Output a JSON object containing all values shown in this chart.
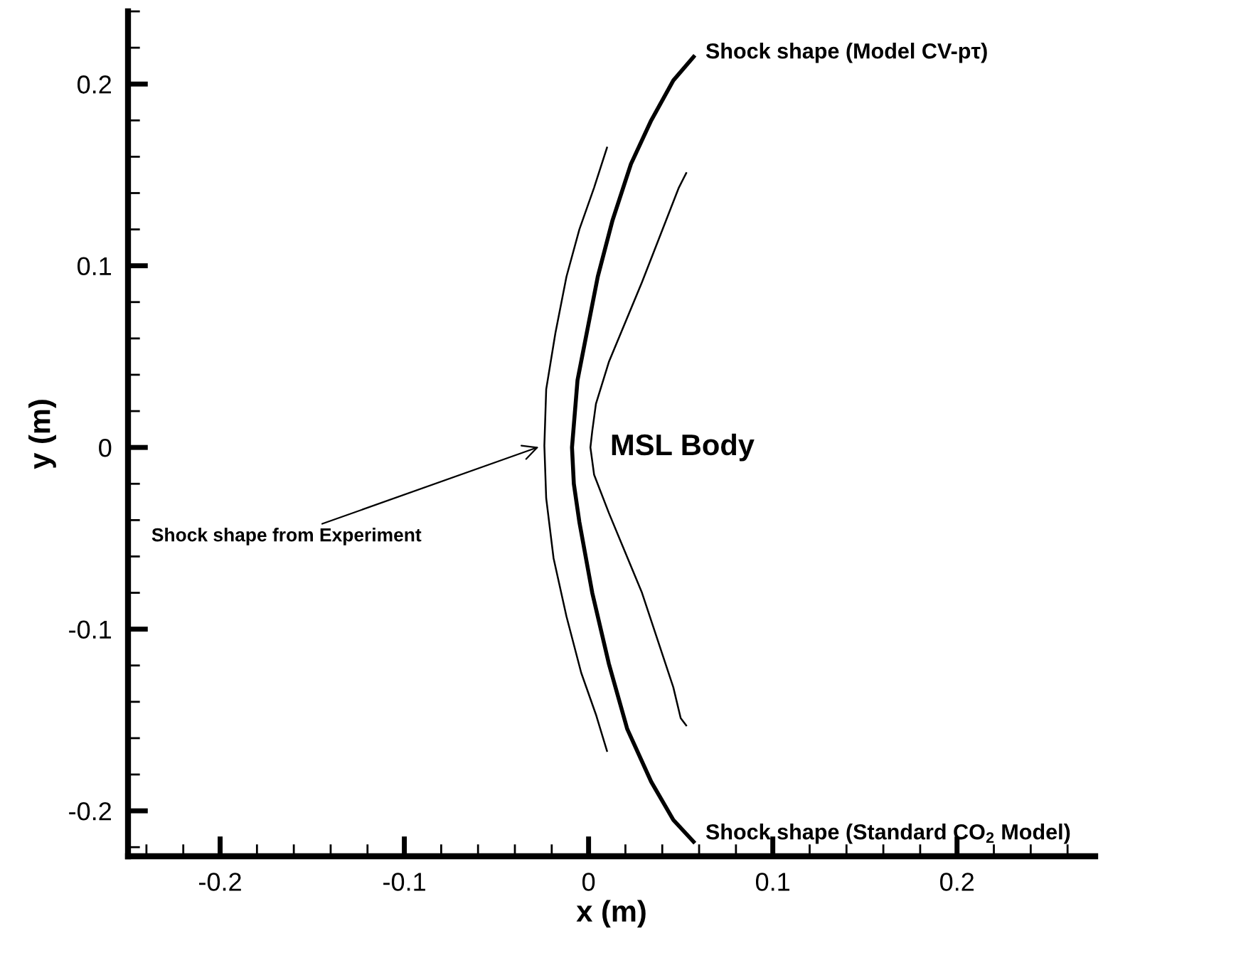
{
  "chart_data": {
    "type": "line",
    "xlabel": "x (m)",
    "ylabel": "y (m)",
    "xlim": [
      -0.25,
      0.275
    ],
    "ylim": [
      -0.225,
      0.24
    ],
    "xticks": [
      -0.2,
      -0.1,
      0,
      0.1,
      0.2
    ],
    "yticks": [
      -0.2,
      -0.1,
      0,
      0.1,
      0.2
    ],
    "grid": false,
    "legend": false,
    "marker": "none",
    "line_style": "solid",
    "series": [
      {
        "color": "#000000",
        "x": [
          0.01,
          0.003,
          -0.005,
          -0.012,
          -0.018,
          -0.023,
          -0.024,
          -0.023,
          -0.019,
          -0.012,
          -0.004,
          0.004,
          0.01
        ],
        "values": [
          0.165,
          0.143,
          0.12,
          0.094,
          0.063,
          0.032,
          0.001,
          -0.028,
          -0.061,
          -0.093,
          -0.124,
          -0.147,
          -0.167
        ]
      },
      {
        "color": "#000000",
        "x": [
          0.057,
          0.046,
          0.034,
          0.023,
          0.013,
          0.005,
          -0.001,
          -0.006,
          -0.009,
          -0.008,
          -0.005,
          0.002,
          0.011,
          0.021,
          0.034,
          0.046,
          0.057
        ],
        "values": [
          0.215,
          0.202,
          0.18,
          0.156,
          0.125,
          0.094,
          0.063,
          0.037,
          0.0,
          -0.02,
          -0.041,
          -0.08,
          -0.119,
          -0.155,
          -0.184,
          -0.205,
          -0.217
        ]
      },
      {
        "color": "#000000",
        "x": [
          0.053,
          0.049,
          0.029,
          0.011,
          0.004,
          0.002,
          0.001,
          0.003,
          0.011,
          0.029,
          0.046,
          0.05,
          0.053
        ],
        "values": [
          0.151,
          0.143,
          0.091,
          0.047,
          0.024,
          0.009,
          0.0,
          -0.015,
          -0.036,
          -0.08,
          -0.132,
          -0.149,
          -0.153
        ]
      }
    ],
    "annotations": [
      {
        "text": "Shock shape (Model CV-pτ)",
        "x": 0.057,
        "y": 0.215
      },
      {
        "text": "Shock shape (Standard CO$_{2}$ Model)",
        "x": 0.057,
        "y": -0.217
      },
      {
        "text": "Shock shape from Experiment",
        "x": -0.025,
        "y": 0.001
      },
      {
        "text": "MSL Body",
        "x": 0.001,
        "y": 0.0
      }
    ]
  }
}
